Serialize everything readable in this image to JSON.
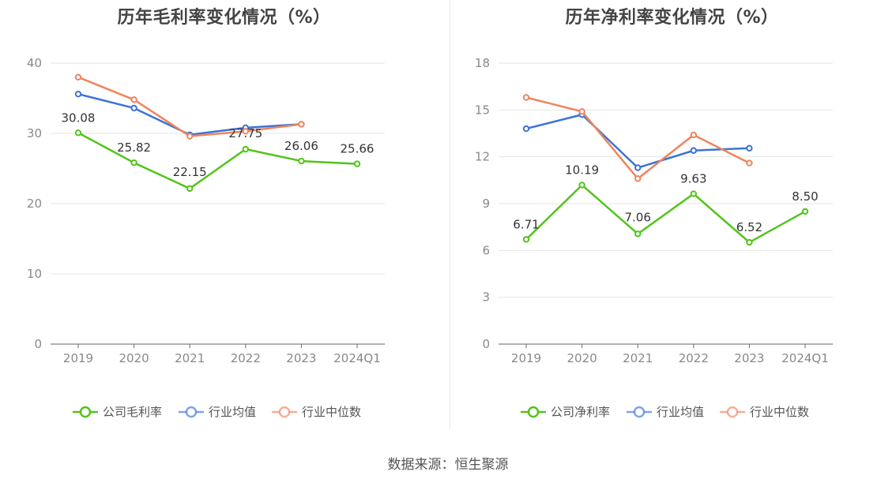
{
  "source": "数据来源：恒生聚源",
  "chart_data": [
    {
      "type": "line",
      "title": "历年毛利率变化情况（%）",
      "categories": [
        "2019",
        "2020",
        "2021",
        "2022",
        "2023",
        "2024Q1"
      ],
      "ylim": [
        0,
        40
      ],
      "yticks": [
        0,
        10,
        20,
        30,
        40
      ],
      "grid": true,
      "legend_position": "bottom",
      "series": [
        {
          "name": "公司毛利率",
          "color": "#52c41a",
          "values": [
            30.08,
            25.82,
            22.15,
            27.75,
            26.06,
            25.66
          ],
          "labels": [
            "30.08",
            "25.82",
            "22.15",
            "27.75",
            "26.06",
            "25.66"
          ]
        },
        {
          "name": "行业均值",
          "color": "#3b73d8",
          "values": [
            35.6,
            33.6,
            29.8,
            30.8,
            31.3,
            null
          ]
        },
        {
          "name": "行业中位数",
          "color": "#f0845c",
          "values": [
            38.0,
            34.8,
            29.6,
            30.3,
            31.3,
            null
          ]
        }
      ]
    },
    {
      "type": "line",
      "title": "历年净利率变化情况（%）",
      "categories": [
        "2019",
        "2020",
        "2021",
        "2022",
        "2023",
        "2024Q1"
      ],
      "ylim": [
        0,
        18
      ],
      "yticks": [
        0,
        3,
        6,
        9,
        12,
        15,
        18
      ],
      "grid": true,
      "legend_position": "bottom",
      "series": [
        {
          "name": "公司净利率",
          "color": "#52c41a",
          "values": [
            6.71,
            10.19,
            7.06,
            9.63,
            6.52,
            8.5
          ],
          "labels": [
            "6.71",
            "10.19",
            "7.06",
            "9.63",
            "6.52",
            "8.50"
          ]
        },
        {
          "name": "行业均值",
          "color": "#3b73d8",
          "values": [
            13.8,
            14.7,
            11.3,
            12.4,
            12.55,
            null
          ]
        },
        {
          "name": "行业中位数",
          "color": "#f0845c",
          "values": [
            15.8,
            14.9,
            10.6,
            13.4,
            11.6,
            null
          ]
        }
      ]
    }
  ]
}
